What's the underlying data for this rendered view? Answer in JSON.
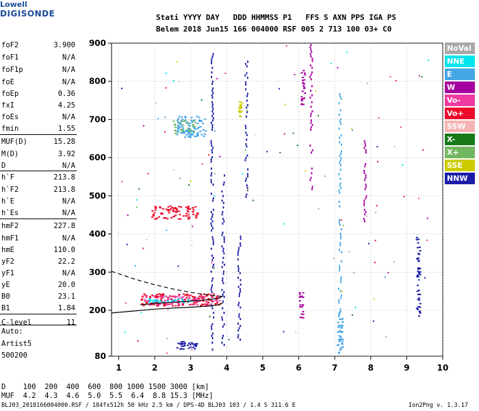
{
  "logo": {
    "line1": "Lowell",
    "line2": "DIGISONDE"
  },
  "header": {
    "line1": "Stati YYYY DAY   DDD HHMMSS P1   FFS S AXN PPS IGA PS",
    "line2": "Belem 2018 Jun15 166 004000 RSF 005 2 713 100 03+ C0"
  },
  "params": [
    {
      "k": "foF2",
      "v": "3.900"
    },
    {
      "k": "foF1",
      "v": "N/A"
    },
    {
      "k": "foF1p",
      "v": "N/A"
    },
    {
      "k": "foE",
      "v": "N/A"
    },
    {
      "k": "foEp",
      "v": "0.36"
    },
    {
      "k": "fxI",
      "v": "4.25"
    },
    {
      "k": "foEs",
      "v": "N/A"
    },
    {
      "k": "fmin",
      "v": "1.55"
    },
    {
      "k": "MUF(D)",
      "v": "15.28"
    },
    {
      "k": "M(D)",
      "v": "3.92"
    },
    {
      "k": "D",
      "v": "N/A"
    },
    {
      "k": "h`F",
      "v": "213.8"
    },
    {
      "k": "h`F2",
      "v": "213.8"
    },
    {
      "k": "h`E",
      "v": "N/A"
    },
    {
      "k": "h`Es",
      "v": "N/A"
    },
    {
      "k": "hmF2",
      "v": "227.8"
    },
    {
      "k": "hmF1",
      "v": "N/A"
    },
    {
      "k": "hmE",
      "v": "110.0"
    },
    {
      "k": "yF2",
      "v": "22.2"
    },
    {
      "k": "yF1",
      "v": "N/A"
    },
    {
      "k": "yE",
      "v": "20.0"
    },
    {
      "k": "B0",
      "v": "23.1"
    },
    {
      "k": "B1",
      "v": "1.84"
    },
    {
      "k": "C-level",
      "v": "11"
    }
  ],
  "auto": {
    "line1": "Auto:",
    "line2": "Artist5",
    "line3": "500200"
  },
  "legend": [
    {
      "label": "NoVal",
      "color": "#a9a9a9"
    },
    {
      "label": "NNE",
      "color": "#00e5ee"
    },
    {
      "label": "E",
      "color": "#45a6e6"
    },
    {
      "label": "W",
      "color": "#a5009f"
    },
    {
      "label": "Vo-",
      "color": "#ee3aa0"
    },
    {
      "label": "Vo+",
      "color": "#ee0a2a"
    },
    {
      "label": "SSW",
      "color": "#f5b3b3"
    },
    {
      "label": "X-",
      "color": "#177a17"
    },
    {
      "label": "X+",
      "color": "#72b760"
    },
    {
      "label": "SSE",
      "color": "#cccc00"
    },
    {
      "label": "NNW",
      "color": "#1c1ca8"
    }
  ],
  "footer": {
    "d_row": "D    100  200  400  600  800 1000 1500 3000 [km]",
    "muf_row": "MUF  4.2  4.3  4.6  5.0  5.5  6.4  8.8 15.3 [MHz]",
    "file_info": "BLJ03_2018166004000.RSF / 184fx512h 50 kHz 2.5 km / DPS-4D BLJ03 103 / 1.4 S 311.6 E",
    "version": "Ion2Png v. 1.3.17"
  },
  "chart_data": {
    "type": "scatter",
    "xlim": [
      0.8,
      10
    ],
    "ylim": [
      80,
      900
    ],
    "xticks": [
      "1",
      "2",
      "3",
      "4",
      "5",
      "6",
      "7",
      "8",
      "9",
      "10"
    ],
    "yticks": [
      "80",
      "200",
      "300",
      "400",
      "500",
      "600",
      "700",
      "800",
      "900"
    ],
    "curves": {
      "dashed": [
        [
          0.8,
          302
        ],
        [
          1.5,
          280
        ],
        [
          2.0,
          267
        ],
        [
          2.5,
          256
        ],
        [
          3.0,
          247
        ],
        [
          3.5,
          240
        ],
        [
          3.9,
          236
        ]
      ],
      "solid_lower": [
        [
          0.8,
          193
        ],
        [
          1.5,
          199
        ],
        [
          2.0,
          203
        ],
        [
          2.5,
          206
        ],
        [
          3.0,
          208
        ],
        [
          3.5,
          211
        ],
        [
          3.8,
          215
        ],
        [
          3.9,
          220
        ]
      ],
      "solid_upper": [
        [
          1.6,
          214
        ],
        [
          2.0,
          218
        ],
        [
          2.5,
          221
        ],
        [
          3.0,
          224
        ],
        [
          3.5,
          228
        ],
        [
          3.8,
          232
        ],
        [
          3.9,
          238
        ]
      ]
    },
    "echo_columns": [
      {
        "x": 3.6,
        "y0": 100,
        "y1": 875,
        "color": "#1c1ca8"
      },
      {
        "x": 3.9,
        "y0": 100,
        "y1": 560,
        "color": "#1c1ca8"
      },
      {
        "x": 6.35,
        "y0": 520,
        "y1": 900,
        "color": "#a5009f"
      },
      {
        "x": 7.15,
        "y0": 85,
        "y1": 790,
        "color": "#45a6e6"
      },
      {
        "x": 7.85,
        "y0": 430,
        "y1": 650,
        "color": "#a5009f"
      },
      {
        "x": 4.55,
        "y0": 500,
        "y1": 860,
        "color": "#1c1ca8"
      },
      {
        "x": 4.35,
        "y0": 120,
        "y1": 400,
        "color": "#1c1ca8"
      }
    ],
    "echo_clusters": [
      {
        "x0": 1.6,
        "x1": 3.85,
        "y0": 213,
        "y1": 245,
        "color": "#ee0a2a"
      },
      {
        "x0": 1.7,
        "x1": 3.8,
        "y0": 215,
        "y1": 240,
        "color": "#ee3aa0"
      },
      {
        "x0": 1.8,
        "x1": 3.0,
        "y0": 222,
        "y1": 232,
        "color": "#00e5ee"
      },
      {
        "x0": 1.9,
        "x1": 3.2,
        "y0": 440,
        "y1": 475,
        "color": "#ee0a2a"
      },
      {
        "x0": 2.5,
        "x1": 3.1,
        "y0": 665,
        "y1": 700,
        "color": "#72b760"
      },
      {
        "x0": 2.6,
        "x1": 3.4,
        "y0": 655,
        "y1": 710,
        "color": "#45a6e6"
      },
      {
        "x0": 2.6,
        "x1": 3.2,
        "y0": 100,
        "y1": 120,
        "color": "#1c1ca8"
      },
      {
        "x0": 4.3,
        "x1": 4.4,
        "y0": 705,
        "y1": 750,
        "color": "#cccc00"
      },
      {
        "x0": 6.0,
        "x1": 6.1,
        "y0": 180,
        "y1": 250,
        "color": "#a5009f"
      },
      {
        "x0": 6.05,
        "x1": 6.15,
        "y0": 740,
        "y1": 830,
        "color": "#a5009f"
      },
      {
        "x0": 7.05,
        "x1": 7.2,
        "y0": 90,
        "y1": 200,
        "color": "#45a6e6"
      },
      {
        "x0": 9.25,
        "x1": 9.35,
        "y0": 180,
        "y1": 400,
        "color": "#1c1ca8"
      }
    ]
  }
}
